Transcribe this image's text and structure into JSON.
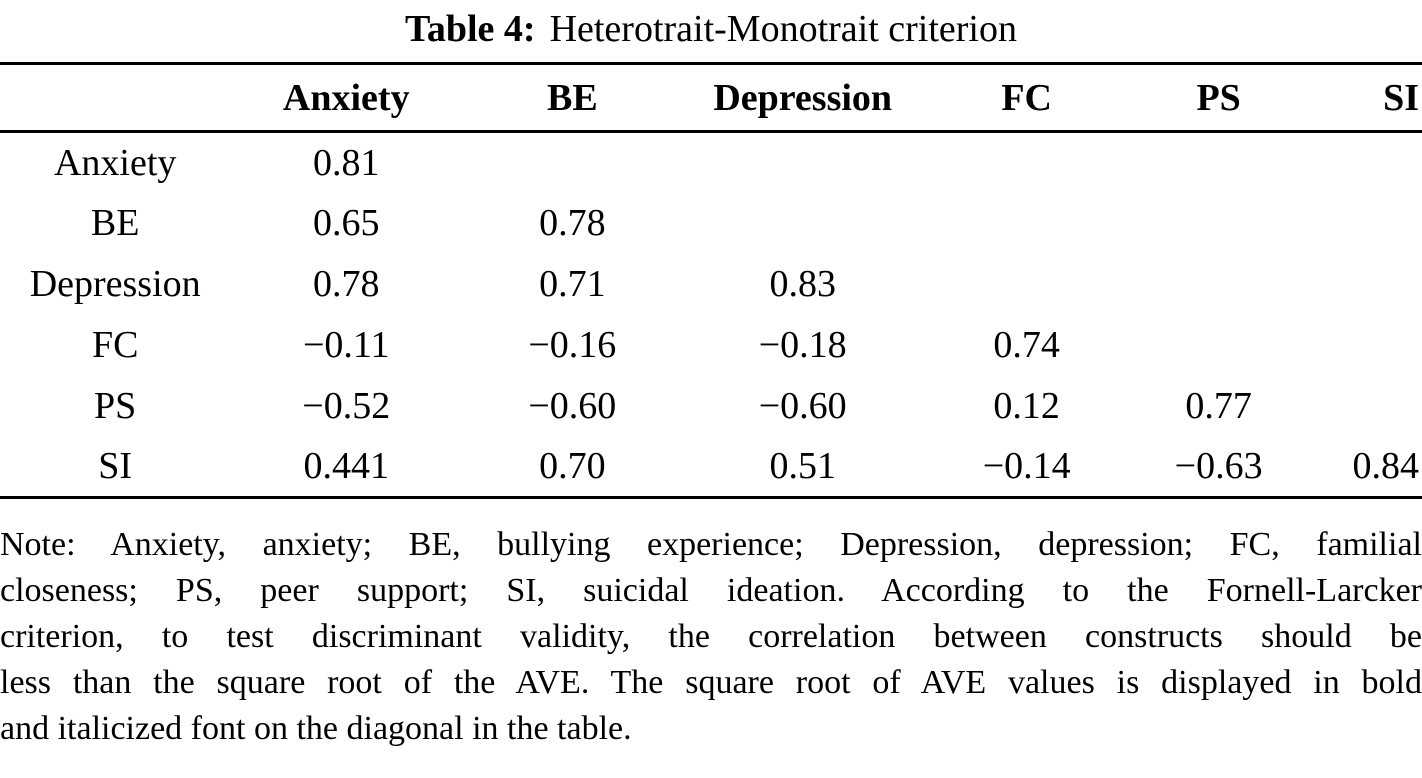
{
  "caption": {
    "label": "Table 4:",
    "title": "Heterotrait-Monotrait criterion"
  },
  "table": {
    "columns": [
      "",
      "Anxiety",
      "BE",
      "Depression",
      "FC",
      "PS",
      "SI"
    ],
    "column_widths_pct": [
      16.2,
      16.3,
      15.5,
      16.9,
      14.6,
      12.4,
      8.1
    ],
    "rows": [
      {
        "label": "Anxiety",
        "values": [
          "0.81",
          "",
          "",
          "",
          "",
          ""
        ]
      },
      {
        "label": "BE",
        "values": [
          "0.65",
          "0.78",
          "",
          "",
          "",
          ""
        ]
      },
      {
        "label": "Depression",
        "values": [
          "0.78",
          "0.71",
          "0.83",
          "",
          "",
          ""
        ]
      },
      {
        "label": "FC",
        "values": [
          "−0.11",
          "−0.16",
          "−0.18",
          "0.74",
          "",
          ""
        ]
      },
      {
        "label": "PS",
        "values": [
          "−0.52",
          "−0.60",
          "−0.60",
          "0.12",
          "0.77",
          ""
        ]
      },
      {
        "label": "SI",
        "values": [
          "0.441",
          "0.70",
          "0.51",
          "−0.14",
          "−0.63",
          "0.84"
        ]
      }
    ]
  },
  "note": {
    "lines": [
      "Note: Anxiety, anxiety; BE, bullying experience; Depression, depression; FC, familial",
      "closeness; PS, peer support; SI, suicidal ideation. According to the Fornell-Larcker",
      "criterion, to test discriminant validity, the correlation between constructs should be",
      "less than the square root of the AVE. The square root of AVE values is displayed in bold",
      "and italicized font on the diagonal in the table."
    ]
  },
  "colors": {
    "text": "#000000",
    "background": "#ffffff",
    "rule": "#000000"
  }
}
